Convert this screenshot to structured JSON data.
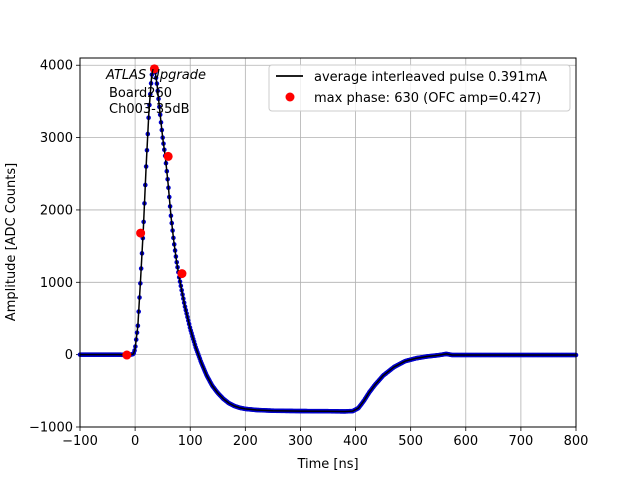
{
  "chart_data": {
    "type": "scatter",
    "title": "",
    "xlabel": "Time [ns]",
    "ylabel": "Amplitude [ADC Counts]",
    "xlim": [
      -100,
      800
    ],
    "ylim": [
      -1000,
      4100
    ],
    "xticks": [
      -100,
      0,
      100,
      200,
      300,
      400,
      500,
      600,
      700,
      800
    ],
    "xtick_labels": [
      "−100",
      "0",
      "100",
      "200",
      "300",
      "400",
      "500",
      "600",
      "700",
      "800"
    ],
    "yticks": [
      -1000,
      0,
      1000,
      2000,
      3000,
      4000
    ],
    "ytick_labels": [
      "−1000",
      "0",
      "1000",
      "2000",
      "3000",
      "4000"
    ],
    "grid": true,
    "legend_position": "top-right",
    "annotations": [
      "ATLAS Upgrade",
      "Board260",
      "Ch003-35dB"
    ],
    "series": [
      {
        "name": "average interleaved pulse 0.391mA",
        "kind": "line-with-markers",
        "line_color": "#000000",
        "marker_color": "#0000cc",
        "x": [
          -100,
          -60,
          -30,
          -15,
          -8,
          -3,
          0,
          5,
          10,
          15,
          20,
          25,
          30,
          33,
          36,
          40,
          45,
          50,
          55,
          60,
          65,
          70,
          75,
          80,
          85,
          90,
          95,
          100,
          110,
          120,
          130,
          140,
          150,
          160,
          170,
          180,
          190,
          200,
          220,
          250,
          300,
          350,
          380,
          395,
          405,
          415,
          425,
          435,
          450,
          470,
          490,
          510,
          530,
          550,
          565,
          575,
          590,
          610,
          650,
          700,
          750,
          800
        ],
        "y": [
          0,
          0,
          0,
          -5,
          0,
          10,
          80,
          400,
          1050,
          1750,
          2600,
          3350,
          3850,
          3970,
          3930,
          3720,
          3350,
          3000,
          2720,
          2350,
          1920,
          1580,
          1300,
          1070,
          870,
          680,
          520,
          360,
          100,
          -110,
          -290,
          -430,
          -530,
          -610,
          -670,
          -710,
          -735,
          -750,
          -765,
          -775,
          -780,
          -782,
          -785,
          -780,
          -740,
          -640,
          -520,
          -420,
          -290,
          -170,
          -90,
          -50,
          -25,
          -8,
          10,
          -5,
          -5,
          -5,
          -5,
          -5,
          -5,
          -5
        ]
      },
      {
        "name": "max phase: 630 (OFC amp=0.427)",
        "kind": "markers",
        "marker_color": "#ff0000",
        "x": [
          -15,
          10,
          35,
          60,
          85
        ],
        "y": [
          -5,
          1680,
          3950,
          2740,
          1120
        ]
      }
    ]
  }
}
